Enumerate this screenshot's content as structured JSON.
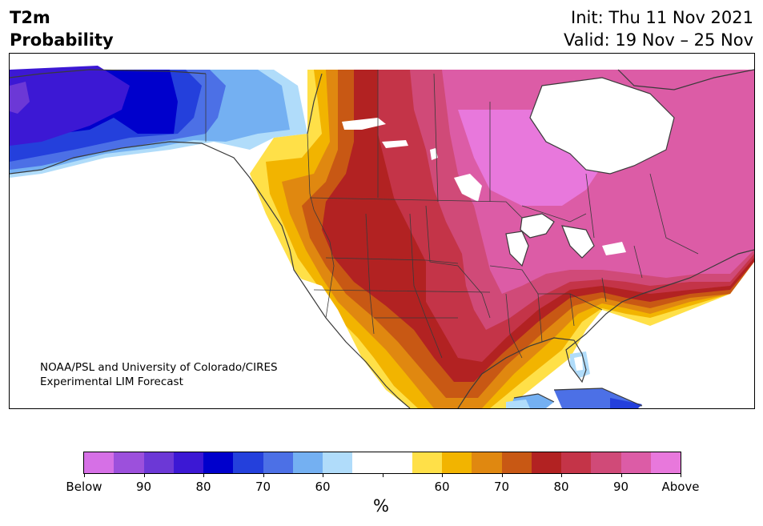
{
  "header": {
    "title_line1": "T2m",
    "title_line2": "Probability",
    "init": "Init: Thu 11 Nov 2021",
    "valid": "Valid: 19 Nov – 25 Nov"
  },
  "credit": {
    "line1": "NOAA/PSL and University of Colorado/CIRES",
    "line2": "Experimental LIM Forecast"
  },
  "colorbar": {
    "colors": [
      "#d670e6",
      "#9c50dc",
      "#6c38d6",
      "#3c18d4",
      "#0000cc",
      "#2440dc",
      "#4c70e6",
      "#74b0f2",
      "#b0dcfa",
      "#ffffff",
      "#ffffff",
      "#ffe048",
      "#f2b400",
      "#e08810",
      "#c85814",
      "#b22222",
      "#c43448",
      "#d04a78",
      "#dc5ca6",
      "#e878dc"
    ],
    "tick_labels": [
      "Below",
      "90",
      "80",
      "70",
      "60",
      "",
      "60",
      "70",
      "80",
      "90",
      "Above"
    ],
    "unit": "%"
  },
  "map": {
    "region": "North America",
    "colors": {
      "above_far": "#e878dc",
      "above_90": "#dc5ca6",
      "above_85": "#d04a78",
      "above_80": "#c43448",
      "above_75": "#b22222",
      "above_70": "#c85814",
      "above_65": "#e08810",
      "above_60": "#f2b400",
      "above_55": "#ffe048",
      "neutral": "#ffffff",
      "below_55": "#b0dcfa",
      "below_60": "#74b0f2",
      "below_65": "#4c70e6",
      "below_70": "#2440dc",
      "below_75": "#0000cc",
      "below_80": "#3c18d4",
      "below_85": "#6c38d6"
    }
  }
}
